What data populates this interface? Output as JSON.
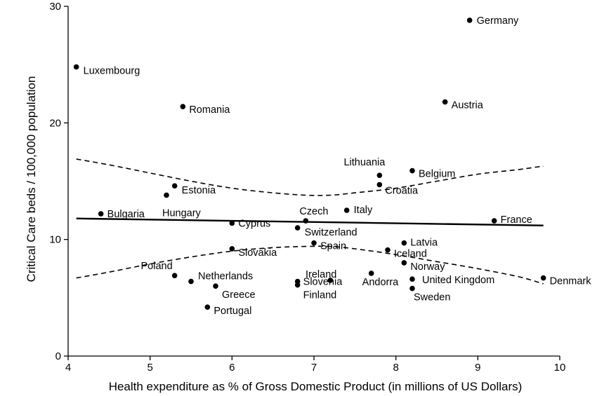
{
  "chart_data": {
    "type": "scatter",
    "title": "",
    "xlabel": "Health expenditure as % of Gross Domestic Product  (in millions of US Dollars)",
    "ylabel": "Critical Care  beds / 100,000 population",
    "xlim": [
      4,
      10
    ],
    "ylim": [
      0,
      30
    ],
    "xticks": [
      4,
      5,
      6,
      7,
      8,
      9,
      10
    ],
    "yticks": [
      0,
      10,
      20,
      30
    ],
    "grid": false,
    "legend": "none",
    "points": [
      {
        "label": "Germany",
        "x": 8.9,
        "y": 28.8
      },
      {
        "label": "Luxembourg",
        "x": 4.1,
        "y": 24.8
      },
      {
        "label": "Romania",
        "x": 5.4,
        "y": 21.4
      },
      {
        "label": "Austria",
        "x": 8.6,
        "y": 21.8
      },
      {
        "label": "Lithuania",
        "x": 7.8,
        "y": 15.5
      },
      {
        "label": "Belgium",
        "x": 8.2,
        "y": 15.9
      },
      {
        "label": "Croatia",
        "x": 7.8,
        "y": 14.7
      },
      {
        "label": "Estonia",
        "x": 5.3,
        "y": 14.6
      },
      {
        "label": "Hungary",
        "x": 5.2,
        "y": 13.8
      },
      {
        "label": "Bulgaria",
        "x": 4.4,
        "y": 12.2
      },
      {
        "label": "Italy",
        "x": 7.4,
        "y": 12.5
      },
      {
        "label": "Czech",
        "x": 6.9,
        "y": 11.6
      },
      {
        "label": "France",
        "x": 9.2,
        "y": 11.6
      },
      {
        "label": "Cyprus",
        "x": 6.0,
        "y": 11.4
      },
      {
        "label": "Switzerland",
        "x": 6.8,
        "y": 11.0
      },
      {
        "label": "Latvia",
        "x": 8.1,
        "y": 9.7
      },
      {
        "label": "Spain",
        "x": 7.0,
        "y": 9.7
      },
      {
        "label": "Slovakia",
        "x": 6.0,
        "y": 9.2
      },
      {
        "label": "Iceland",
        "x": 7.9,
        "y": 9.1
      },
      {
        "label": "Norway",
        "x": 8.1,
        "y": 8.0
      },
      {
        "label": "Andorra",
        "x": 7.7,
        "y": 7.1
      },
      {
        "label": "Poland",
        "x": 5.3,
        "y": 6.9
      },
      {
        "label": "Netherlands",
        "x": 5.5,
        "y": 6.4
      },
      {
        "label": "Ireland",
        "x": 7.2,
        "y": 6.5
      },
      {
        "label": "Slovenia",
        "x": 6.8,
        "y": 6.4
      },
      {
        "label": "Finland",
        "x": 6.8,
        "y": 6.1
      },
      {
        "label": "United Kingdom",
        "x": 8.2,
        "y": 6.6
      },
      {
        "label": "Denmark",
        "x": 9.8,
        "y": 6.7
      },
      {
        "label": "Greece",
        "x": 5.8,
        "y": 6.0
      },
      {
        "label": "Sweden",
        "x": 8.2,
        "y": 5.8
      },
      {
        "label": "Portugal",
        "x": 5.7,
        "y": 4.2
      }
    ],
    "fit_line": {
      "x": [
        4.1,
        9.8
      ],
      "y": [
        11.8,
        11.2
      ]
    },
    "confidence_band": {
      "upper": {
        "x": [
          4.1,
          4.5,
          5.0,
          5.5,
          6.0,
          6.5,
          6.9,
          7.2,
          7.5,
          8.0,
          8.5,
          9.0,
          9.5,
          9.8
        ],
        "y": [
          16.9,
          16.4,
          15.7,
          15.0,
          14.4,
          14.0,
          13.8,
          13.8,
          14.0,
          14.4,
          15.0,
          15.6,
          16.0,
          16.3
        ]
      },
      "lower": {
        "x": [
          4.1,
          4.5,
          5.0,
          5.5,
          6.0,
          6.5,
          6.9,
          7.2,
          7.5,
          8.0,
          8.5,
          9.0,
          9.5,
          9.8
        ],
        "y": [
          6.7,
          7.2,
          7.9,
          8.5,
          9.0,
          9.3,
          9.4,
          9.4,
          9.2,
          8.7,
          8.1,
          7.5,
          6.8,
          6.2
        ]
      }
    }
  }
}
